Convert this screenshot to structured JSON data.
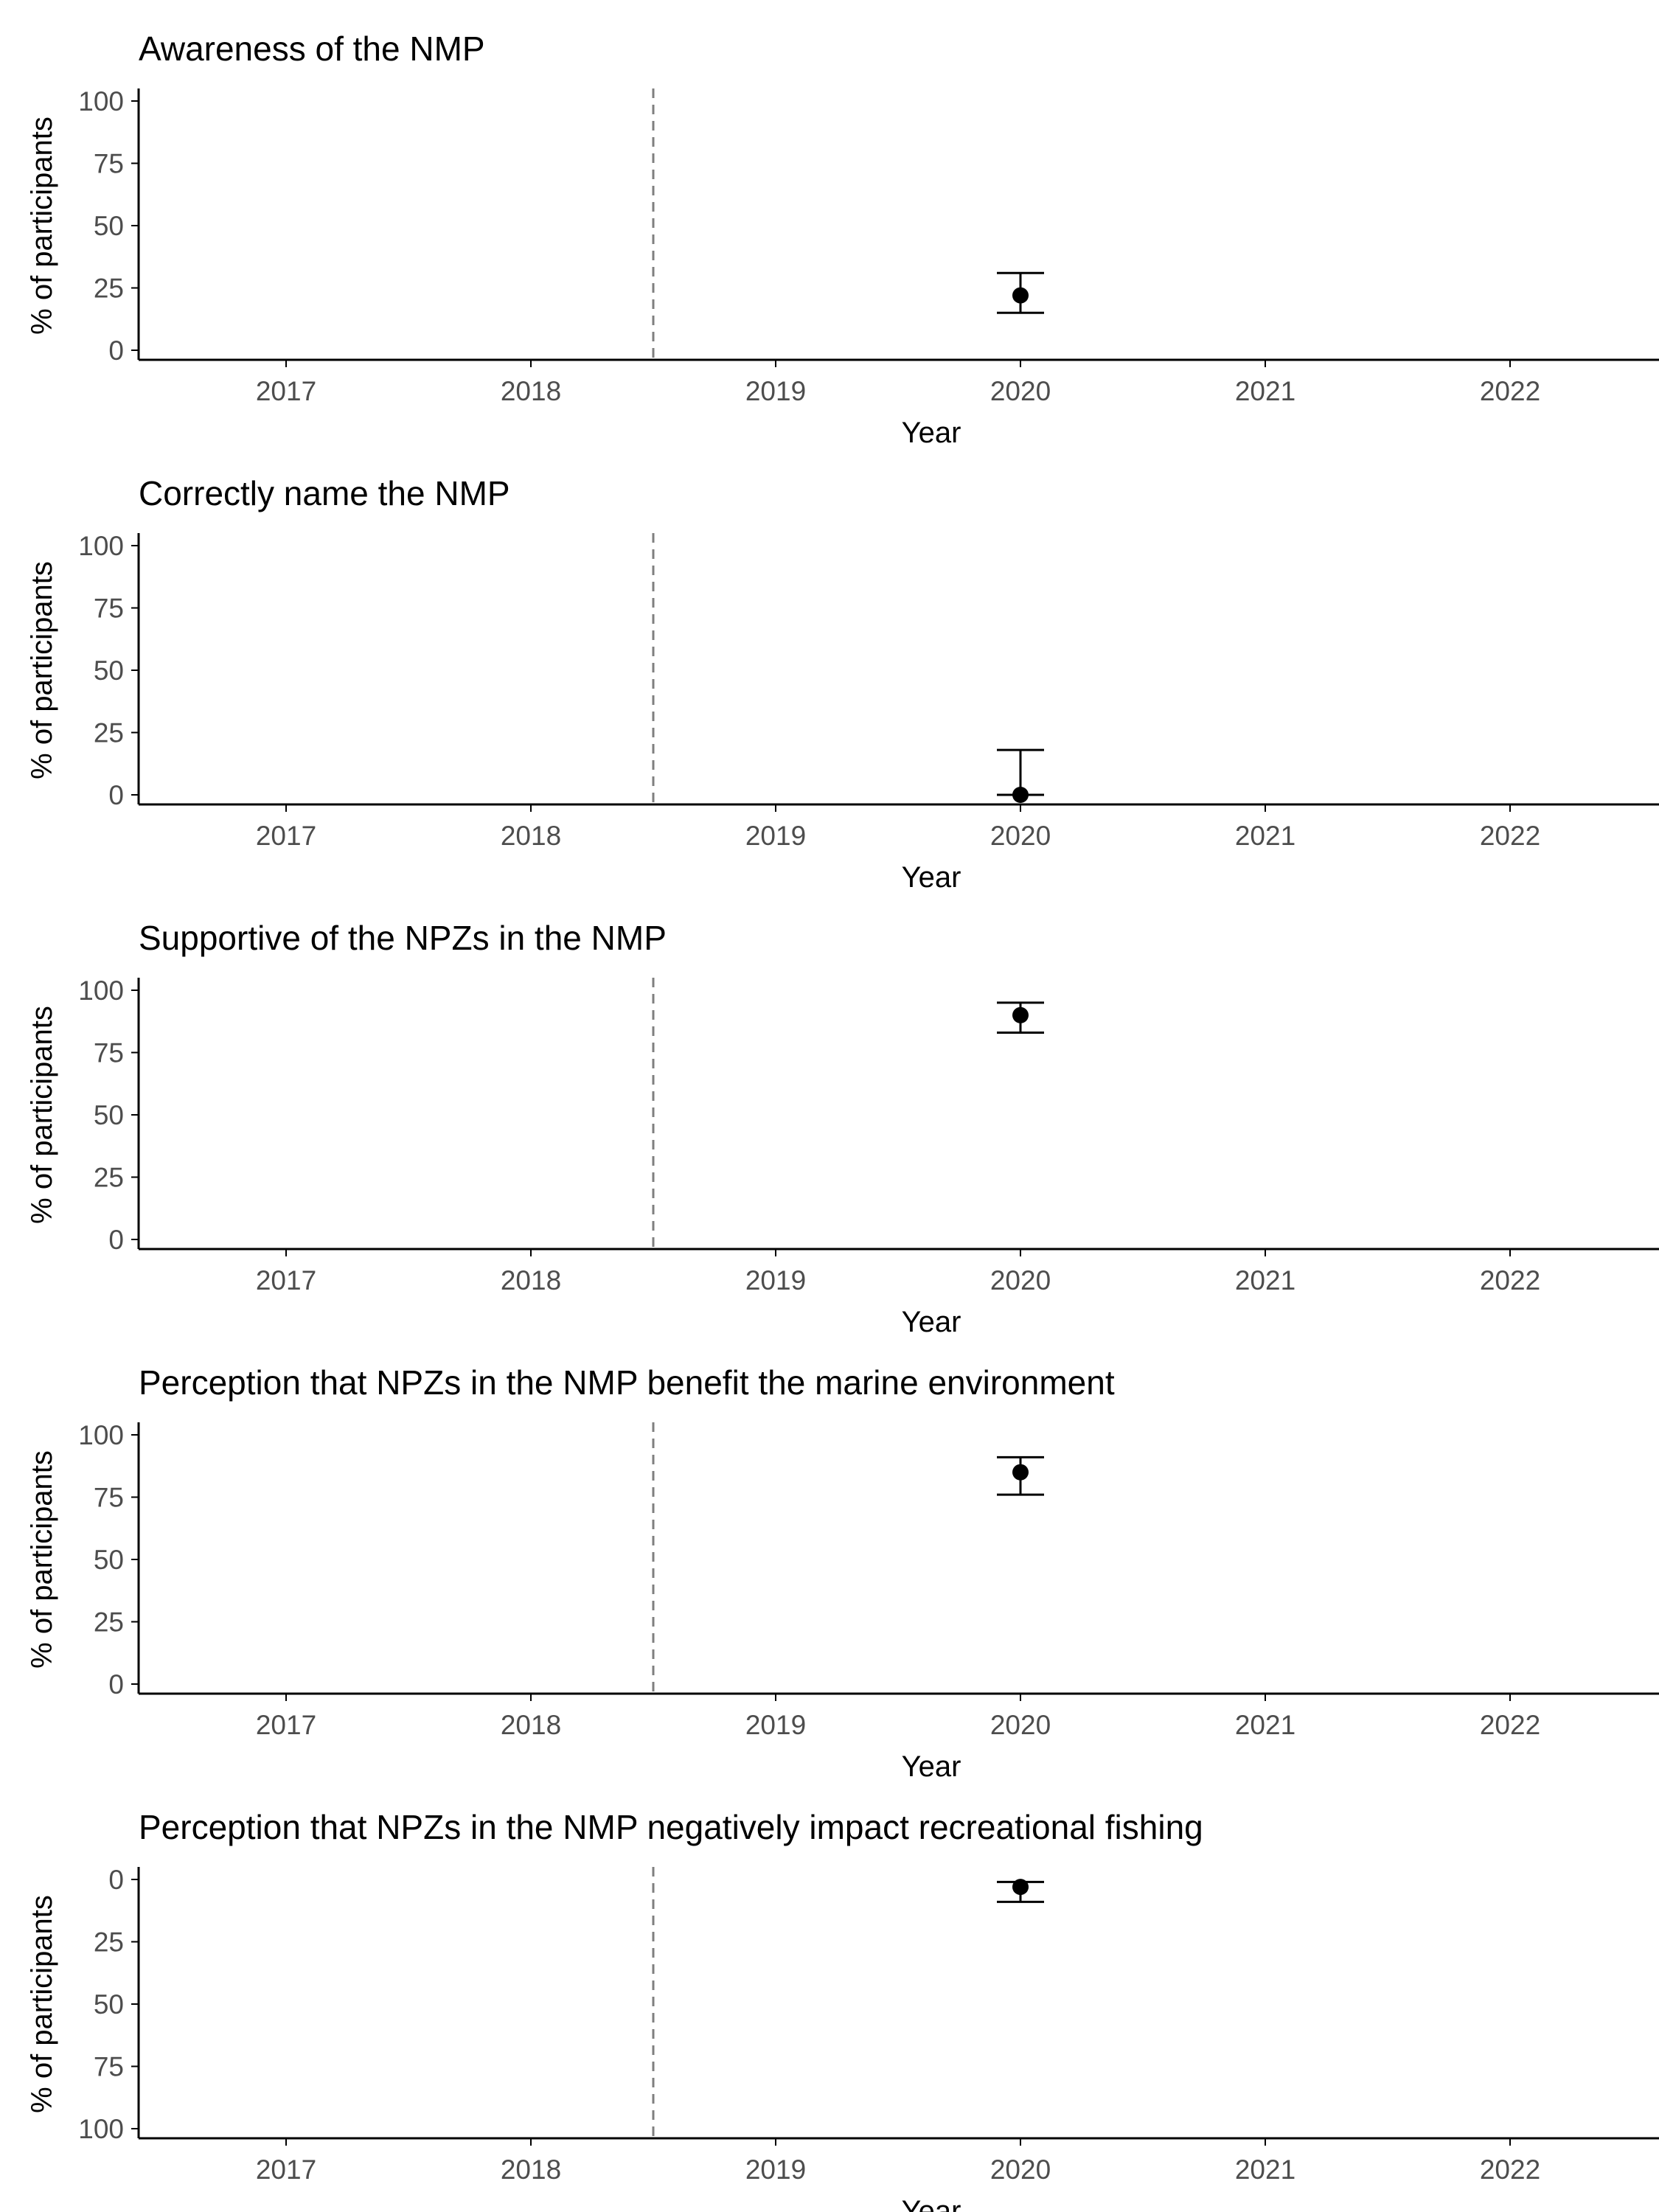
{
  "chart_data": [
    {
      "type": "scatter",
      "title": "Awareness of the NMP",
      "xlabel": "Year",
      "ylabel": "% of participants",
      "x_ticks": [
        "2017",
        "2018",
        "2019",
        "2020",
        "2021",
        "2022"
      ],
      "y_ticks": [
        "0",
        "25",
        "50",
        "75",
        "100"
      ],
      "xlim": [
        2016.4,
        2022.6
      ],
      "ylim": [
        0,
        100
      ],
      "y_reversed": false,
      "reference_line": {
        "x": 2018.5,
        "style": "dashed"
      },
      "points": [
        {
          "x": 2020,
          "y": 22,
          "lower": 15,
          "upper": 31
        }
      ],
      "grid": false
    },
    {
      "type": "scatter",
      "title": "Correctly name the NMP",
      "xlabel": "Year",
      "ylabel": "% of participants",
      "x_ticks": [
        "2017",
        "2018",
        "2019",
        "2020",
        "2021",
        "2022"
      ],
      "y_ticks": [
        "0",
        "25",
        "50",
        "75",
        "100"
      ],
      "xlim": [
        2016.4,
        2022.6
      ],
      "ylim": [
        0,
        100
      ],
      "y_reversed": false,
      "reference_line": {
        "x": 2018.5,
        "style": "dashed"
      },
      "points": [
        {
          "x": 2020,
          "y": 0,
          "lower": 0,
          "upper": 18
        }
      ],
      "grid": false
    },
    {
      "type": "scatter",
      "title": "Supportive of the NPZs in the NMP",
      "xlabel": "Year",
      "ylabel": "% of participants",
      "x_ticks": [
        "2017",
        "2018",
        "2019",
        "2020",
        "2021",
        "2022"
      ],
      "y_ticks": [
        "0",
        "25",
        "50",
        "75",
        "100"
      ],
      "xlim": [
        2016.4,
        2022.6
      ],
      "ylim": [
        0,
        100
      ],
      "y_reversed": false,
      "reference_line": {
        "x": 2018.5,
        "style": "dashed"
      },
      "points": [
        {
          "x": 2020,
          "y": 90,
          "lower": 83,
          "upper": 95
        }
      ],
      "grid": false
    },
    {
      "type": "scatter",
      "title": "Perception that NPZs in the NMP benefit the marine environment",
      "xlabel": "Year",
      "ylabel": "% of participants",
      "x_ticks": [
        "2017",
        "2018",
        "2019",
        "2020",
        "2021",
        "2022"
      ],
      "y_ticks": [
        "0",
        "25",
        "50",
        "75",
        "100"
      ],
      "xlim": [
        2016.4,
        2022.6
      ],
      "ylim": [
        0,
        100
      ],
      "y_reversed": false,
      "reference_line": {
        "x": 2018.5,
        "style": "dashed"
      },
      "points": [
        {
          "x": 2020,
          "y": 85,
          "lower": 76,
          "upper": 91
        }
      ],
      "grid": false
    },
    {
      "type": "scatter",
      "title": "Perception that NPZs in the NMP negatively impact recreational fishing",
      "xlabel": "Year",
      "ylabel": "% of participants",
      "x_ticks": [
        "2017",
        "2018",
        "2019",
        "2020",
        "2021",
        "2022"
      ],
      "y_ticks": [
        "0",
        "25",
        "50",
        "75",
        "100"
      ],
      "xlim": [
        2016.4,
        2022.6
      ],
      "ylim": [
        0,
        100
      ],
      "y_reversed": true,
      "reference_line": {
        "x": 2018.5,
        "style": "dashed"
      },
      "points": [
        {
          "x": 2020,
          "y": 3,
          "lower": 1,
          "upper": 9
        }
      ],
      "grid": false
    }
  ],
  "colors": {
    "point": "#000000",
    "axis": "#000000",
    "reference_line": "#7f7f7f",
    "tick_label": "#4d4d4d"
  }
}
